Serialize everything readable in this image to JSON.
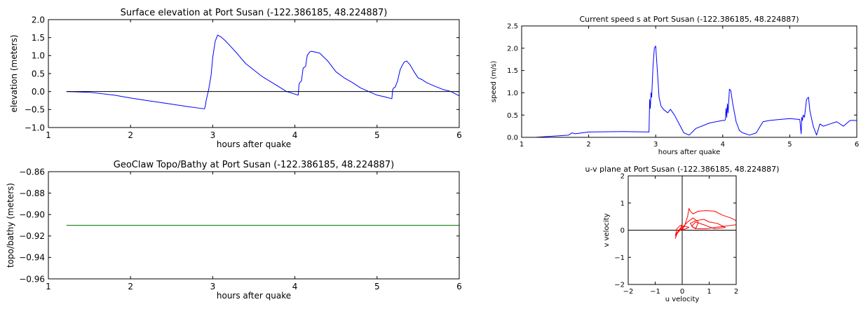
{
  "chart_data": [
    {
      "id": "surface",
      "type": "line",
      "title": "Surface elevation at Port Susan  (-122.386185, 48.224887)",
      "xlabel": "hours after quake",
      "ylabel": "elevation (meters)",
      "xlim": [
        1,
        6
      ],
      "ylim": [
        -1.0,
        2.0
      ],
      "xticks": [
        1,
        2,
        3,
        4,
        5,
        6
      ],
      "xtick_labels": [
        "1",
        "2",
        "3",
        "4",
        "5",
        "6"
      ],
      "yticks": [
        -1.0,
        -0.5,
        0.0,
        0.5,
        1.0,
        1.5,
        2.0
      ],
      "ytick_labels": [
        "−1.0",
        "−0.5",
        "0.0",
        "0.5",
        "1.0",
        "1.5",
        "2.0"
      ],
      "grid": false,
      "series": [
        {
          "color": "#0000ff",
          "x": [
            1.22,
            1.5,
            1.8,
            2.0,
            2.2,
            2.5,
            2.7,
            2.9,
            2.91,
            2.92,
            2.95,
            2.98,
            3.0,
            3.03,
            3.06,
            3.1,
            3.15,
            3.2,
            3.3,
            3.4,
            3.5,
            3.6,
            3.7,
            3.8,
            3.9,
            4.0,
            4.04,
            4.05,
            4.06,
            4.08,
            4.1,
            4.13,
            4.15,
            4.18,
            4.2,
            4.3,
            4.4,
            4.5,
            4.6,
            4.7,
            4.8,
            4.9,
            5.0,
            5.1,
            5.18,
            5.19,
            5.2,
            5.22,
            5.25,
            5.28,
            5.3,
            5.33,
            5.36,
            5.4,
            5.45,
            5.5,
            5.55,
            5.6,
            5.7,
            5.8,
            5.9,
            6.0
          ],
          "y": [
            0.0,
            -0.02,
            -0.1,
            -0.18,
            -0.25,
            -0.35,
            -0.42,
            -0.48,
            -0.4,
            -0.25,
            0.05,
            0.45,
            0.95,
            1.4,
            1.57,
            1.52,
            1.42,
            1.3,
            1.05,
            0.78,
            0.6,
            0.42,
            0.28,
            0.14,
            0.0,
            -0.07,
            -0.1,
            0.2,
            0.25,
            0.3,
            0.65,
            0.7,
            1.0,
            1.1,
            1.12,
            1.07,
            0.85,
            0.55,
            0.38,
            0.25,
            0.1,
            0.0,
            -0.1,
            -0.15,
            -0.2,
            0.05,
            0.1,
            0.12,
            0.3,
            0.6,
            0.7,
            0.82,
            0.85,
            0.75,
            0.55,
            0.38,
            0.33,
            0.25,
            0.15,
            0.06,
            0.0,
            -0.12
          ]
        },
        {
          "color": "#000000",
          "x": [
            1.22,
            6.0
          ],
          "y": [
            0.0,
            0.0
          ]
        }
      ]
    },
    {
      "id": "speed",
      "type": "line",
      "title": "Current speed s at Port Susan  (-122.386185, 48.224887)",
      "xlabel": "hours after quake",
      "ylabel": "speed (m/s)",
      "xlim": [
        1,
        6
      ],
      "ylim": [
        0.0,
        2.5
      ],
      "xticks": [
        1,
        2,
        3,
        4,
        5,
        6
      ],
      "xtick_labels": [
        "1",
        "2",
        "3",
        "4",
        "5",
        "6"
      ],
      "yticks": [
        0.0,
        0.5,
        1.0,
        1.5,
        2.0,
        2.5
      ],
      "ytick_labels": [
        "0.0",
        "0.5",
        "1.0",
        "1.5",
        "2.0",
        "2.5"
      ],
      "grid": false,
      "series": [
        {
          "color": "#0000ff",
          "x": [
            1.2,
            1.5,
            1.7,
            1.75,
            1.8,
            1.9,
            2.0,
            2.5,
            2.9,
            2.91,
            2.92,
            2.93,
            2.94,
            2.96,
            2.98,
            3.0,
            3.02,
            3.05,
            3.08,
            3.12,
            3.18,
            3.22,
            3.28,
            3.35,
            3.42,
            3.5,
            3.6,
            3.8,
            4.0,
            4.03,
            4.04,
            4.05,
            4.06,
            4.07,
            4.08,
            4.1,
            4.12,
            4.15,
            4.2,
            4.25,
            4.3,
            4.4,
            4.5,
            4.6,
            4.7,
            4.85,
            5.0,
            5.15,
            5.17,
            5.18,
            5.19,
            5.2,
            5.22,
            5.25,
            5.28,
            5.3,
            5.35,
            5.4,
            5.45,
            5.5,
            5.6,
            5.7,
            5.8,
            5.9,
            6.0
          ],
          "y": [
            0.0,
            0.03,
            0.05,
            0.1,
            0.08,
            0.1,
            0.12,
            0.13,
            0.12,
            0.85,
            0.65,
            1.0,
            0.9,
            1.6,
            2.0,
            2.05,
            1.6,
            0.9,
            0.7,
            0.62,
            0.55,
            0.63,
            0.5,
            0.3,
            0.1,
            0.05,
            0.2,
            0.32,
            0.38,
            0.38,
            0.4,
            0.65,
            0.45,
            0.75,
            0.55,
            1.08,
            1.05,
            0.75,
            0.35,
            0.15,
            0.1,
            0.05,
            0.1,
            0.35,
            0.38,
            0.4,
            0.42,
            0.4,
            0.08,
            0.45,
            0.38,
            0.5,
            0.45,
            0.85,
            0.9,
            0.6,
            0.25,
            0.05,
            0.3,
            0.25,
            0.3,
            0.35,
            0.25,
            0.38,
            0.38
          ]
        }
      ]
    },
    {
      "id": "topo",
      "type": "line",
      "title": "GeoClaw Topo/Bathy at Port Susan  (-122.386185, 48.224887)",
      "xlabel": "hours after quake",
      "ylabel": "topo/bathy (meters)",
      "xlim": [
        1,
        6
      ],
      "ylim": [
        -0.96,
        -0.86
      ],
      "xticks": [
        1,
        2,
        3,
        4,
        5,
        6
      ],
      "xtick_labels": [
        "1",
        "2",
        "3",
        "4",
        "5",
        "6"
      ],
      "yticks": [
        -0.96,
        -0.94,
        -0.92,
        -0.9,
        -0.88,
        -0.86
      ],
      "ytick_labels": [
        "−0.96",
        "−0.94",
        "−0.92",
        "−0.90",
        "−0.88",
        "−0.86"
      ],
      "grid": false,
      "series": [
        {
          "color": "#008000",
          "x": [
            1.22,
            6.0
          ],
          "y": [
            -0.91,
            -0.91
          ]
        }
      ]
    },
    {
      "id": "uv",
      "type": "line",
      "title": "u-v plane at Port Susan  (-122.386185, 48.224887)",
      "xlabel": "u velocity",
      "ylabel": "v velocity",
      "xlim": [
        -2,
        2
      ],
      "ylim": [
        -2,
        2
      ],
      "xticks": [
        -2,
        -1,
        0,
        1,
        2
      ],
      "xtick_labels": [
        "−2",
        "−1",
        "0",
        "1",
        "2"
      ],
      "yticks": [
        -2,
        -1,
        0,
        1,
        2
      ],
      "ytick_labels": [
        "−2",
        "−1",
        "0",
        "1",
        "2"
      ],
      "grid": false,
      "series": [
        {
          "color": "#ff0000",
          "x": [
            0.0,
            0.1,
            0.2,
            0.25,
            0.3,
            0.4,
            0.6,
            0.9,
            1.2,
            1.5,
            1.8,
            2.0,
            2.0,
            1.6,
            1.2,
            0.9,
            0.6,
            0.4,
            0.3,
            0.5,
            0.8,
            1.0,
            1.3,
            1.6,
            1.2,
            0.8,
            0.5,
            0.35,
            0.5,
            0.6,
            0.4,
            0.2,
            0.1,
            0.0,
            -0.1,
            -0.2,
            -0.25,
            -0.2,
            -0.05,
            0.0,
            -0.1,
            -0.2,
            -0.25,
            -0.2,
            0.0,
            0.1,
            0.25,
            0.0
          ],
          "y": [
            0.0,
            0.2,
            0.5,
            0.8,
            0.7,
            0.6,
            0.7,
            0.72,
            0.7,
            0.55,
            0.45,
            0.35,
            0.2,
            0.15,
            0.1,
            0.05,
            0.05,
            0.1,
            0.25,
            0.35,
            0.4,
            0.3,
            0.25,
            0.1,
            0.05,
            0.2,
            0.3,
            0.15,
            0.05,
            0.3,
            0.45,
            0.3,
            0.2,
            0.1,
            0.0,
            -0.15,
            -0.3,
            -0.1,
            0.1,
            0.2,
            0.15,
            0.05,
            -0.2,
            -0.1,
            0.05,
            0.15,
            0.1,
            0.0
          ]
        }
      ]
    }
  ]
}
